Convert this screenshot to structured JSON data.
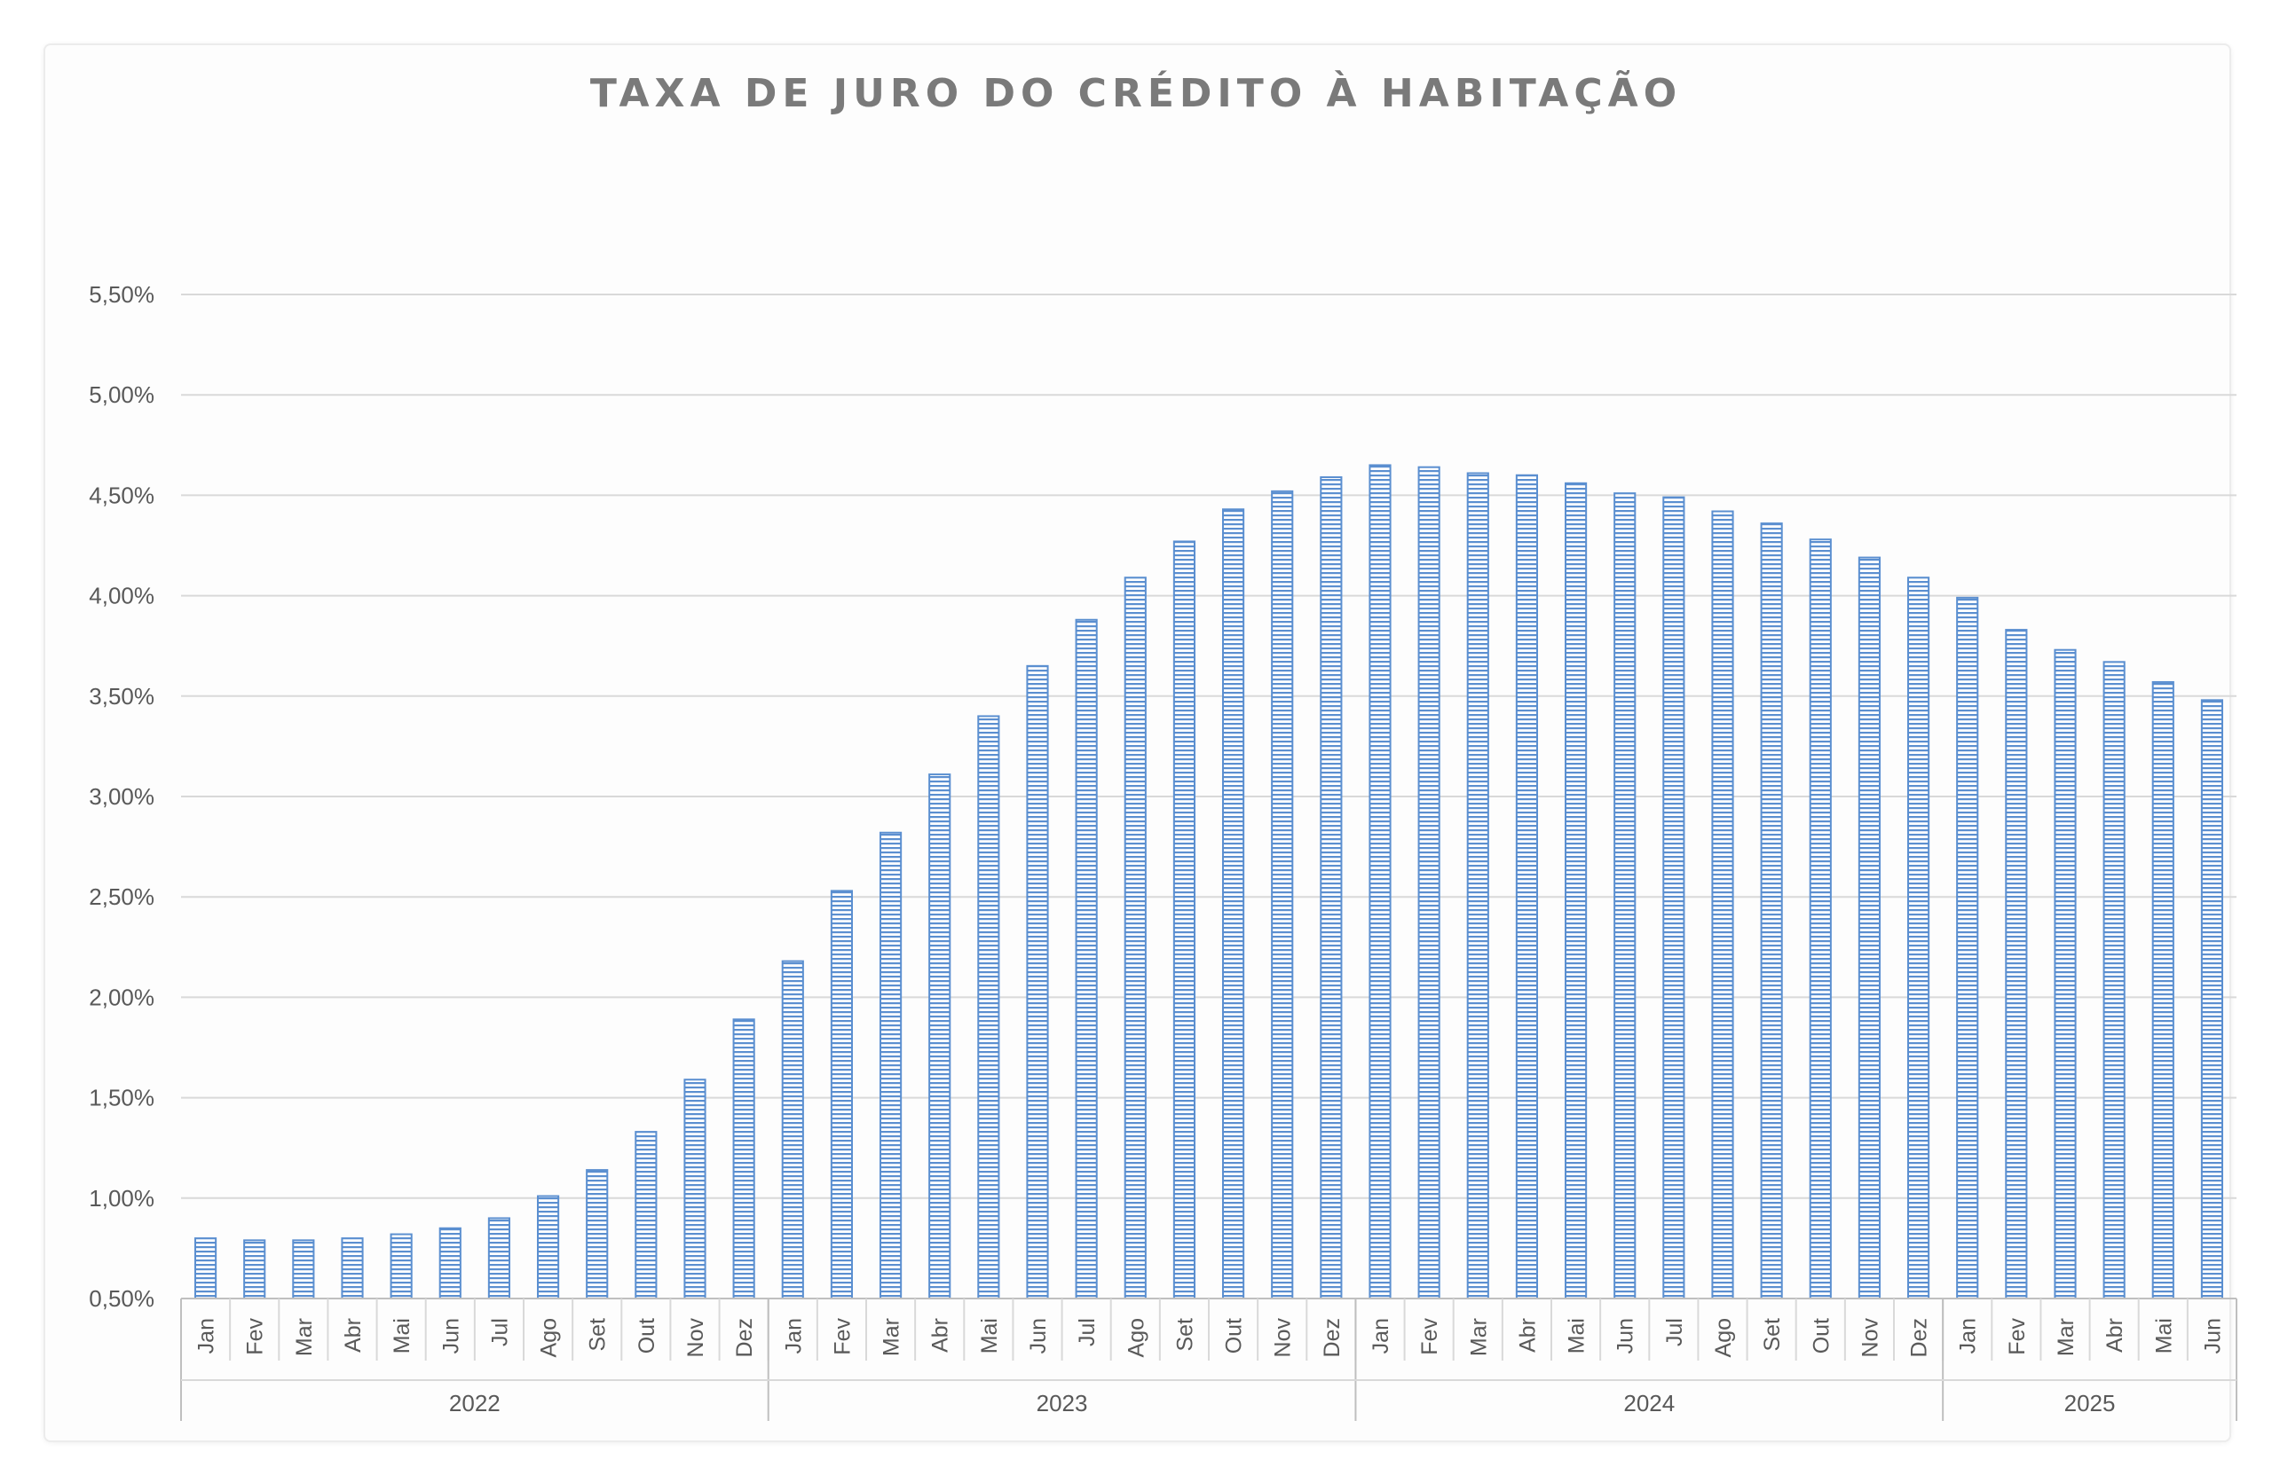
{
  "chart_data": {
    "type": "bar",
    "title": "TAXA DE JURO DO CRÉDITO À HABITAÇÃO",
    "xlabel": "",
    "ylabel": "",
    "ylim": [
      0.5,
      5.5
    ],
    "yticks": [
      "0,50%",
      "1,00%",
      "1,50%",
      "2,00%",
      "2,50%",
      "3,00%",
      "3,50%",
      "4,00%",
      "4,50%",
      "5,00%",
      "5,50%"
    ],
    "grid": true,
    "legend": "none",
    "bar_color": "#5b8fd0",
    "groups": [
      {
        "label": "2022",
        "months": [
          "Jan",
          "Fev",
          "Mar",
          "Abr",
          "Mai",
          "Jun",
          "Jul",
          "Ago",
          "Set",
          "Out",
          "Nov",
          "Dez"
        ]
      },
      {
        "label": "2023",
        "months": [
          "Jan",
          "Fev",
          "Mar",
          "Abr",
          "Mai",
          "Jun",
          "Jul",
          "Ago",
          "Set",
          "Out",
          "Nov",
          "Dez"
        ]
      },
      {
        "label": "2024",
        "months": [
          "Jan",
          "Fev",
          "Mar",
          "Abr",
          "Mai",
          "Jun",
          "Jul",
          "Ago",
          "Set",
          "Out",
          "Nov",
          "Dez"
        ]
      },
      {
        "label": "2025",
        "months": [
          "Jan",
          "Fev",
          "Mar",
          "Abr",
          "Mai",
          "Jun"
        ]
      }
    ],
    "values": [
      0.8,
      0.79,
      0.79,
      0.8,
      0.82,
      0.85,
      0.9,
      1.01,
      1.14,
      1.33,
      1.59,
      1.89,
      2.18,
      2.53,
      2.82,
      3.11,
      3.4,
      3.65,
      3.88,
      4.09,
      4.27,
      4.43,
      4.52,
      4.59,
      4.65,
      4.64,
      4.61,
      4.6,
      4.56,
      4.51,
      4.49,
      4.42,
      4.36,
      4.28,
      4.19,
      4.09,
      3.99,
      3.83,
      3.73,
      3.67,
      3.57,
      3.48
    ]
  }
}
